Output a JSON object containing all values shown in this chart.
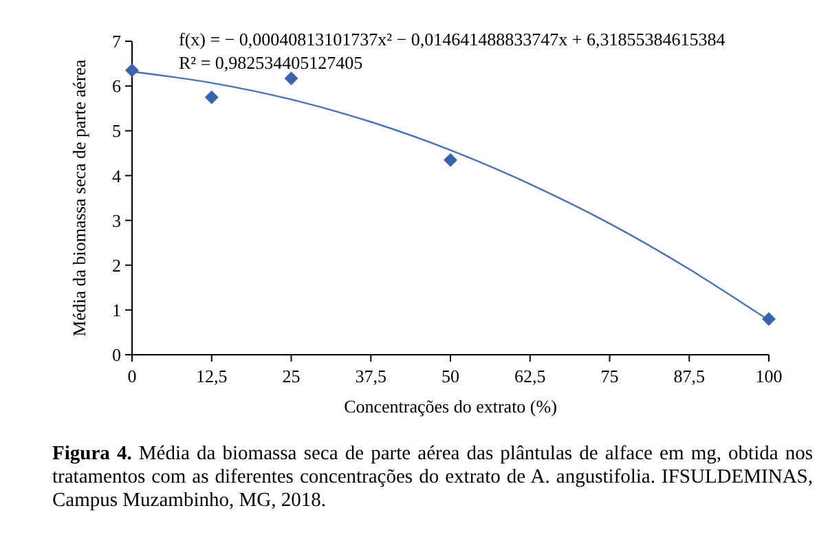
{
  "chart_data": {
    "type": "scatter",
    "xlabel": "Concentrações do extrato (%)",
    "ylabel": "Média da biomassa seca de parte aérea",
    "x": [
      0,
      12.5,
      25,
      50,
      100
    ],
    "series": [
      {
        "color": "#3a64a8",
        "marker": "diamond",
        "values": [
          6.35,
          5.75,
          6.17,
          4.35,
          0.8
        ]
      },
      {
        "type": "line",
        "color": "#4a72b8",
        "marker": "none",
        "x": [
          0,
          12.5,
          25,
          37.5,
          50,
          62.5,
          75,
          87.5,
          100
        ],
        "values": [
          6.32,
          6.07,
          5.7,
          5.2,
          4.57,
          3.81,
          2.93,
          1.91,
          0.77
        ]
      }
    ],
    "xlim": [
      0,
      100
    ],
    "xticks": [
      0,
      {
        "value": 12.5,
        "label": "12,5"
      },
      25,
      {
        "value": 37.5,
        "label": "37,5"
      },
      50,
      {
        "value": 62.5,
        "label": "62,5"
      },
      75,
      {
        "value": 87.5,
        "label": "87,5"
      },
      100
    ],
    "ylim": [
      0,
      7
    ],
    "yticks": [
      0,
      1,
      2,
      3,
      4,
      5,
      6,
      7
    ],
    "annotations": [
      "f(x) = − 0,00040813101737x² − 0,014641488833747x + 6,31855384615384",
      "R² = 0,982534405127405",
      "Figura 4. Média da biomassa seca de parte aérea das plântulas de alface em mg, obtida nos tratamentos com as diferentes concentrações do extrato de A. angustifolia. IFSULDEMINAS, Campus Muzambinho, MG, 2018."
    ]
  }
}
